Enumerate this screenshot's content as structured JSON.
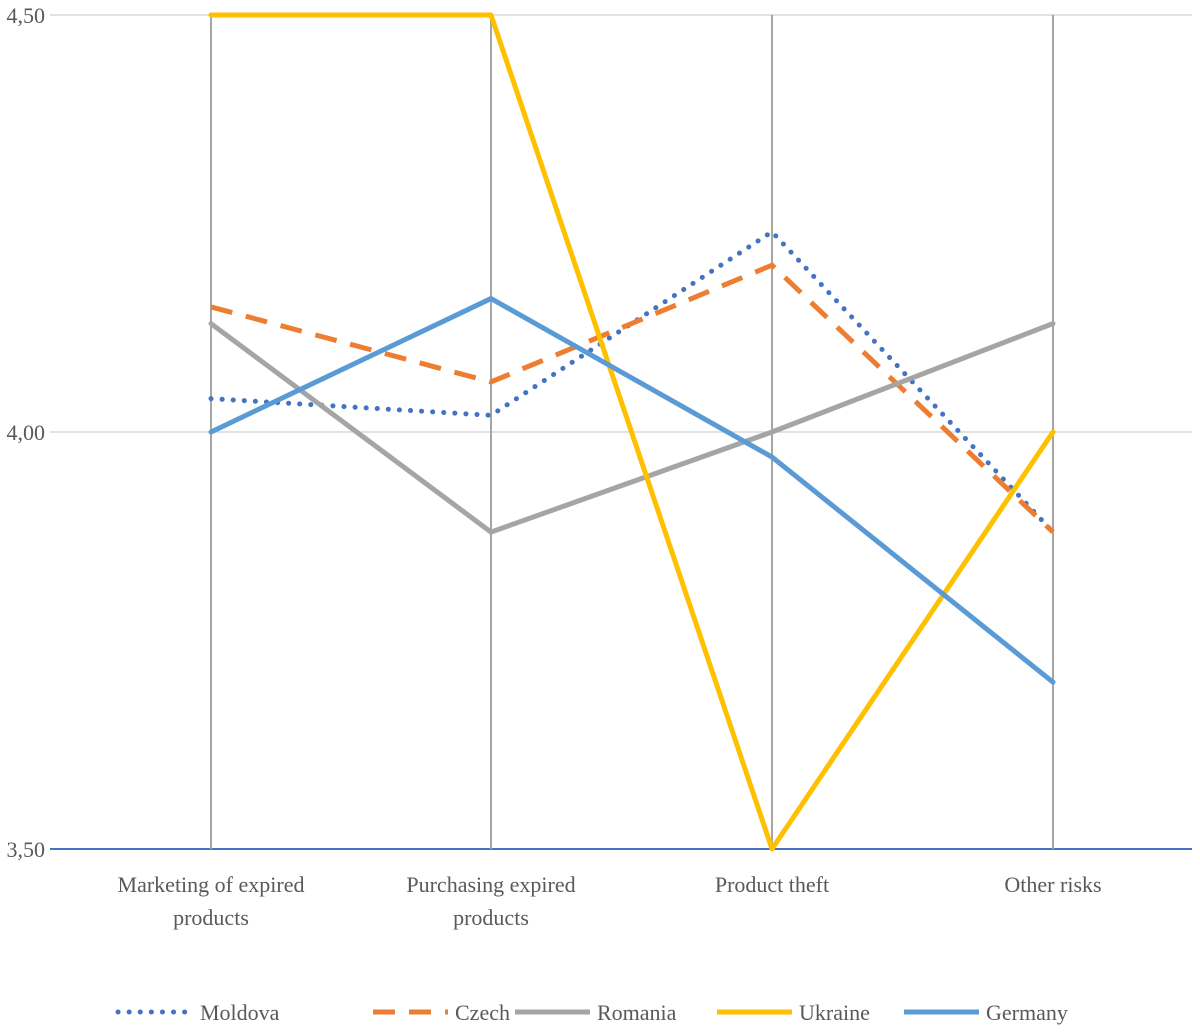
{
  "chart_data": {
    "type": "line",
    "title": "",
    "xlabel": "",
    "ylabel": "",
    "ylim": [
      3.5,
      4.5
    ],
    "y_ticks": [
      "3,50",
      "4,00",
      "4,50"
    ],
    "y_tick_values": [
      3.5,
      4.0,
      4.5
    ],
    "categories": [
      [
        "Marketing of expired",
        "products"
      ],
      [
        "Purchasing expired",
        "products"
      ],
      [
        "Product theft"
      ],
      [
        "Other risks"
      ]
    ],
    "grid": true,
    "legend_position": "bottom",
    "series": [
      {
        "name": "Moldova",
        "values": [
          4.04,
          4.02,
          4.24,
          3.88
        ],
        "color": "#4472C4",
        "style": "dotted"
      },
      {
        "name": "Czech",
        "values": [
          4.15,
          4.06,
          4.2,
          3.88
        ],
        "color": "#ED7D31",
        "style": "dashed"
      },
      {
        "name": "Romania",
        "values": [
          4.13,
          3.88,
          4.0,
          4.13
        ],
        "color": "#A5A5A5",
        "style": "solid"
      },
      {
        "name": "Ukraine",
        "values": [
          4.5,
          4.5,
          3.5,
          4.0
        ],
        "color": "#FFC000",
        "style": "solid"
      },
      {
        "name": "Germany",
        "values": [
          4.0,
          4.16,
          3.97,
          3.7
        ],
        "color": "#5B9BD5",
        "style": "solid"
      }
    ]
  }
}
